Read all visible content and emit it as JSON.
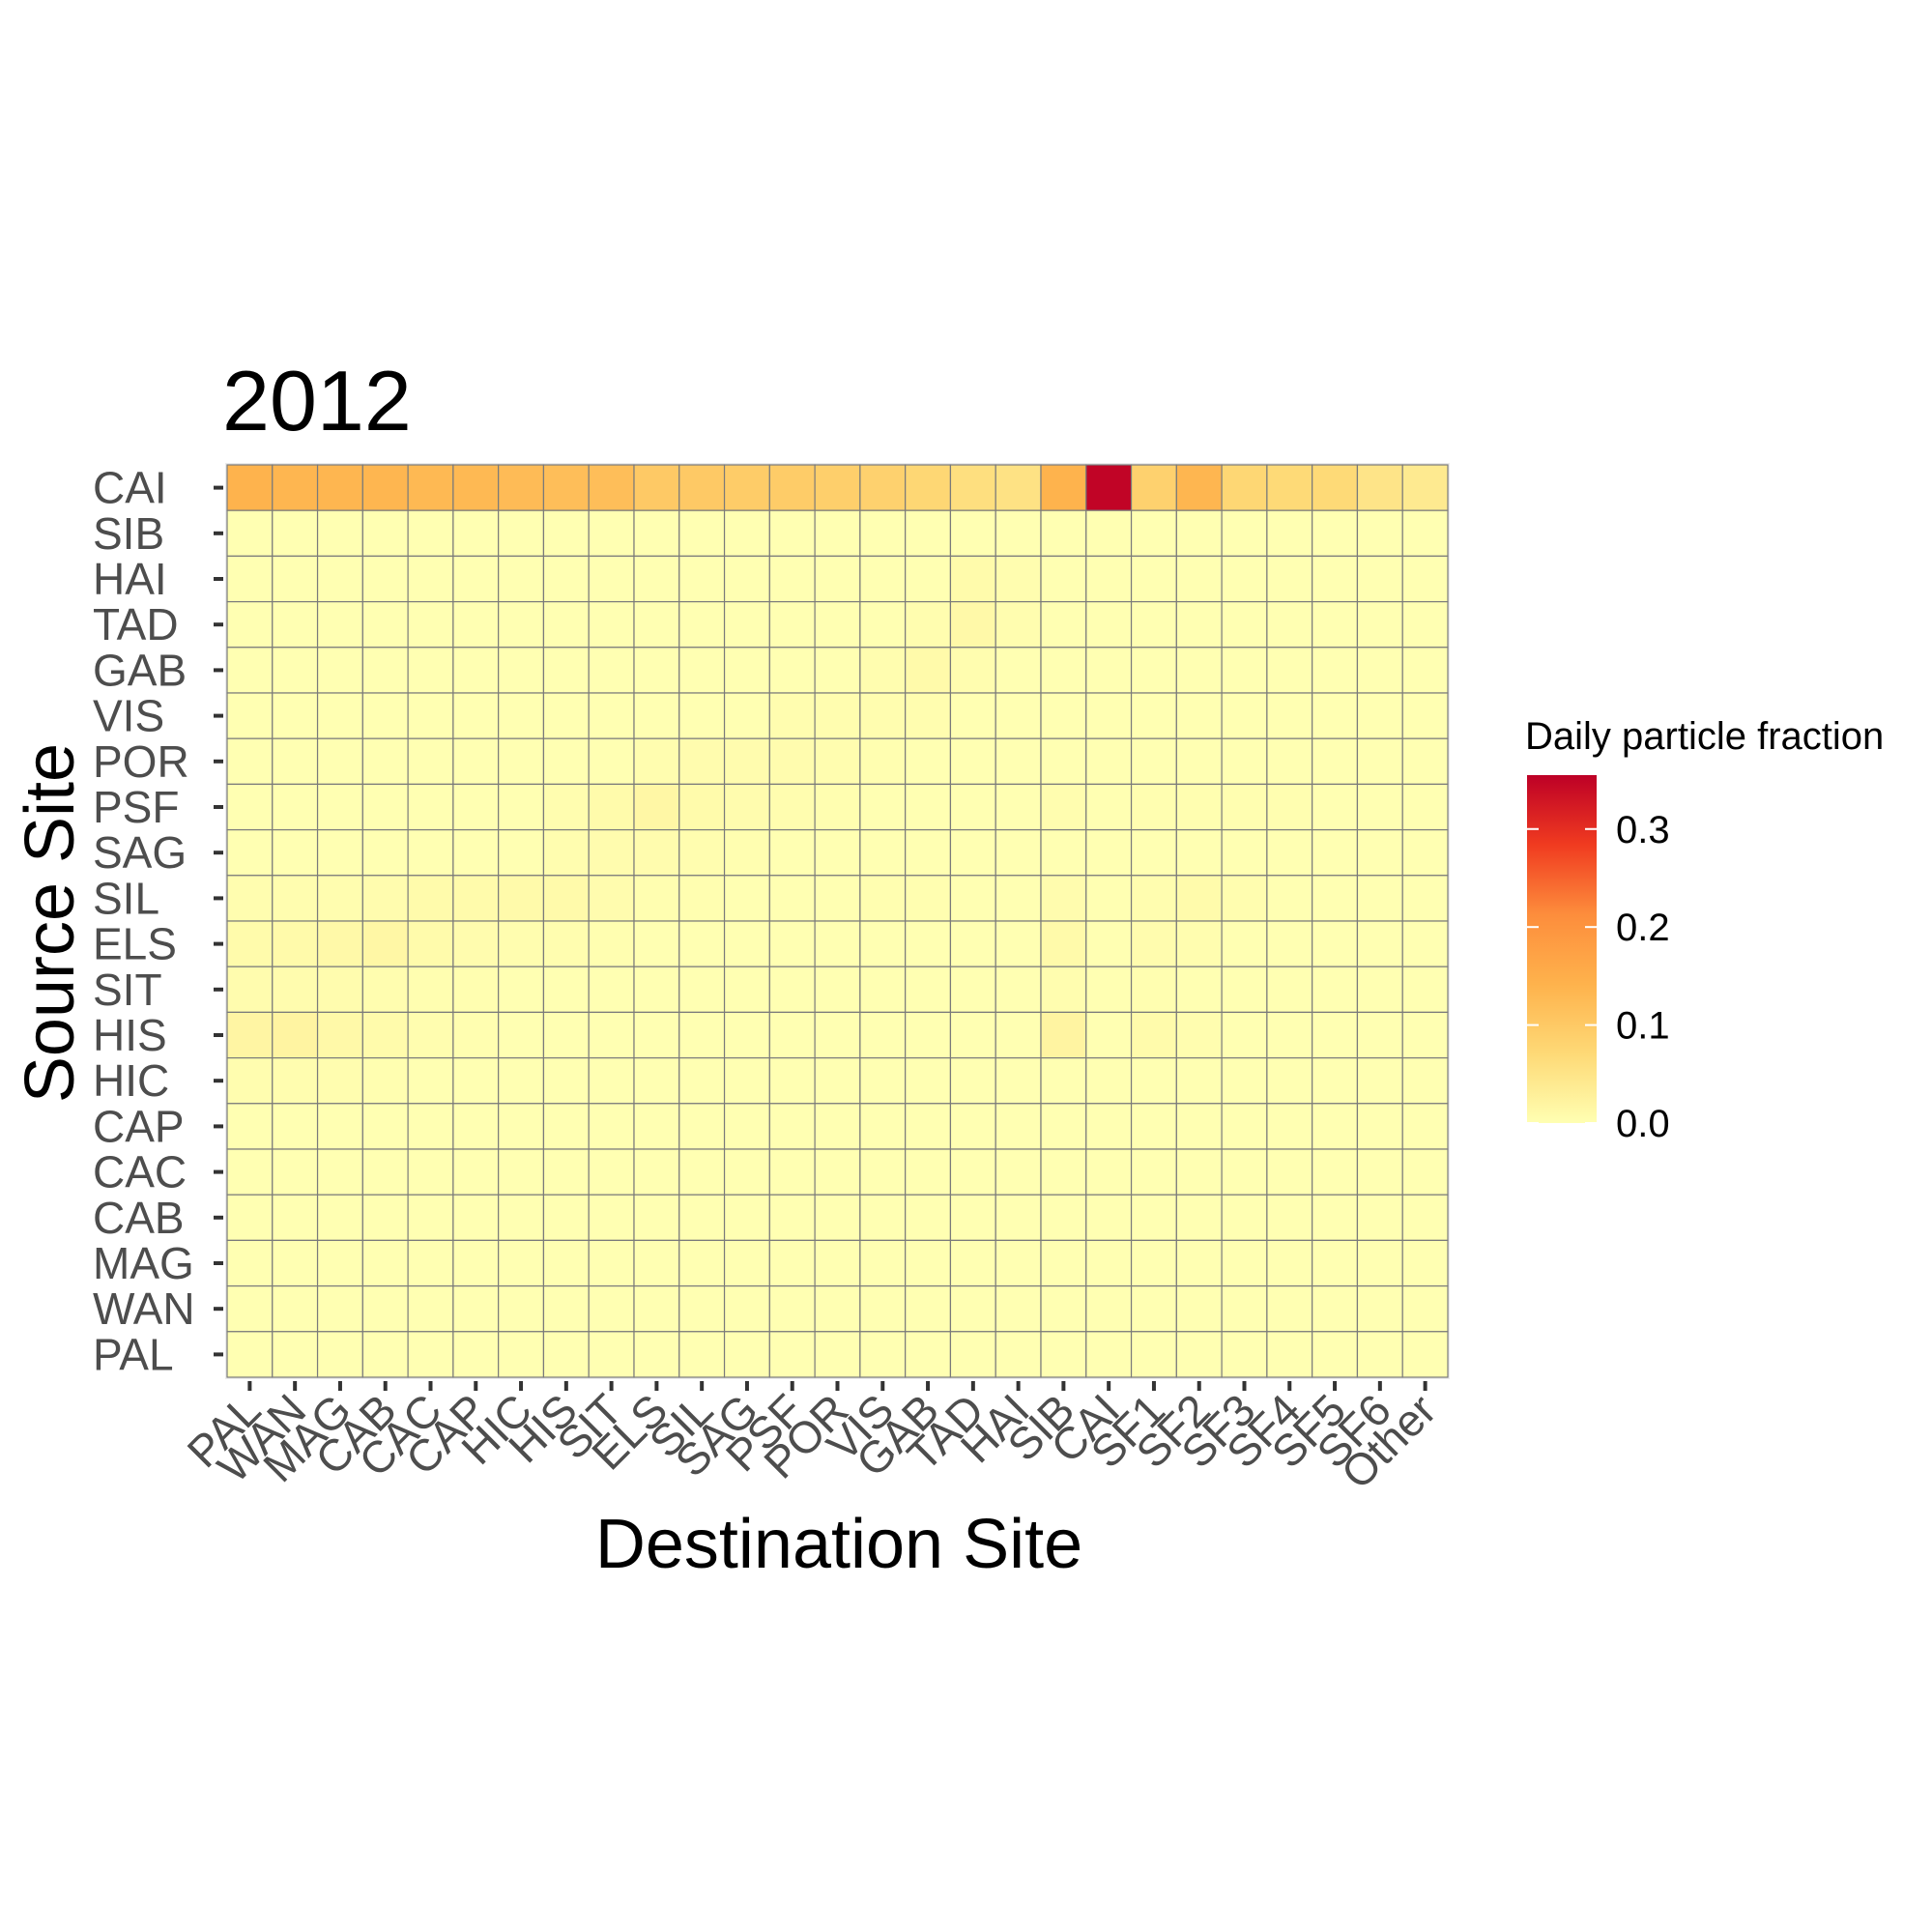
{
  "chart_data": {
    "type": "heatmap",
    "title": "2012",
    "xlabel": "Destination Site",
    "ylabel": "Source Site",
    "x_categories": [
      "PAL",
      "WAN",
      "MAG",
      "CAB",
      "CAC",
      "CAP",
      "HIC",
      "HIS",
      "SIT",
      "ELS",
      "SIL",
      "SAG",
      "PSF",
      "POR",
      "VIS",
      "GAB",
      "TAD",
      "HAI",
      "SIB",
      "CAI",
      "SF1",
      "SF2",
      "SF3",
      "SF4",
      "SF5",
      "SF6",
      "Other"
    ],
    "y_categories": [
      "PAL",
      "WAN",
      "MAG",
      "CAB",
      "CAC",
      "CAP",
      "HIC",
      "HIS",
      "SIT",
      "ELS",
      "SIL",
      "SAG",
      "PSF",
      "POR",
      "VIS",
      "GAB",
      "TAD",
      "HAI",
      "SIB",
      "CAI"
    ],
    "cells": [
      {
        "y": "CAI",
        "values": [
          0.14,
          0.135,
          0.135,
          0.135,
          0.13,
          0.13,
          0.125,
          0.12,
          0.12,
          0.1,
          0.1,
          0.095,
          0.095,
          0.09,
          0.085,
          0.075,
          0.06,
          0.055,
          0.14,
          0.35,
          0.085,
          0.135,
          0.075,
          0.07,
          0.07,
          0.05,
          0.04
        ]
      },
      {
        "y": "SIB",
        "values": [
          0,
          0,
          0,
          0,
          0,
          0,
          0,
          0,
          0,
          0,
          0,
          0,
          0,
          0,
          0,
          0,
          0,
          0,
          0,
          0,
          0,
          0,
          0,
          0,
          0,
          0,
          0
        ]
      },
      {
        "y": "HAI",
        "values": [
          0,
          0,
          0,
          0,
          0,
          0,
          0,
          0,
          0,
          0,
          0,
          0,
          0,
          0,
          0,
          0,
          0.008,
          0.003,
          0,
          0,
          0,
          0,
          0,
          0,
          0,
          0,
          0
        ]
      },
      {
        "y": "TAD",
        "values": [
          0,
          0,
          0,
          0,
          0,
          0,
          0,
          0,
          0,
          0,
          0,
          0,
          0,
          0,
          0,
          0.003,
          0.012,
          0.003,
          0,
          0,
          0,
          0,
          0,
          0,
          0,
          0,
          0
        ]
      },
      {
        "y": "GAB",
        "values": [
          0,
          0,
          0,
          0,
          0,
          0,
          0,
          0,
          0,
          0,
          0,
          0,
          0,
          0,
          0.003,
          0.01,
          0.003,
          0,
          0,
          0,
          0,
          0,
          0,
          0,
          0,
          0,
          0
        ]
      },
      {
        "y": "VIS",
        "values": [
          0,
          0,
          0,
          0,
          0,
          0,
          0,
          0,
          0,
          0,
          0,
          0,
          0.003,
          0.003,
          0.003,
          0.003,
          0,
          0,
          0,
          0,
          0,
          0,
          0,
          0,
          0,
          0,
          0
        ]
      },
      {
        "y": "POR",
        "values": [
          0,
          0,
          0,
          0,
          0,
          0,
          0,
          0,
          0,
          0.003,
          0.005,
          0.005,
          0.005,
          0.003,
          0.002,
          0,
          0,
          0,
          0,
          0,
          0,
          0,
          0,
          0,
          0,
          0,
          0
        ]
      },
      {
        "y": "PSF",
        "values": [
          0,
          0,
          0,
          0,
          0,
          0,
          0,
          0.003,
          0.008,
          0.015,
          0.008,
          0.005,
          0.003,
          0.002,
          0,
          0,
          0,
          0,
          0.003,
          0,
          0.002,
          0.002,
          0.002,
          0.002,
          0,
          0,
          0
        ]
      },
      {
        "y": "SAG",
        "values": [
          0,
          0,
          0,
          0,
          0,
          0,
          0,
          0.003,
          0.005,
          0.005,
          0.003,
          0.002,
          0,
          0,
          0,
          0,
          0,
          0,
          0,
          0,
          0,
          0,
          0,
          0,
          0,
          0,
          0
        ]
      },
      {
        "y": "SIL",
        "values": [
          0.003,
          0.003,
          0.003,
          0.005,
          0.008,
          0.008,
          0.01,
          0.01,
          0.005,
          0.002,
          0.002,
          0,
          0,
          0,
          0.002,
          0.002,
          0,
          0,
          0.005,
          0,
          0.003,
          0.008,
          0.003,
          0,
          0,
          0,
          0
        ]
      },
      {
        "y": "ELS",
        "values": [
          0.008,
          0.01,
          0.012,
          0.015,
          0.008,
          0.005,
          0.003,
          0.003,
          0.002,
          0,
          0,
          0,
          0,
          0,
          0,
          0,
          0,
          0,
          0.01,
          0,
          0.005,
          0.003,
          0,
          0,
          0,
          0,
          0
        ]
      },
      {
        "y": "SIT",
        "values": [
          0.005,
          0.005,
          0.005,
          0.003,
          0.002,
          0.002,
          0,
          0,
          0,
          0,
          0,
          0,
          0,
          0,
          0,
          0,
          0,
          0,
          0.003,
          0,
          0.002,
          0,
          0,
          0,
          0,
          0,
          0
        ]
      },
      {
        "y": "HIS",
        "values": [
          0.018,
          0.02,
          0.012,
          0.008,
          0.003,
          0.002,
          0,
          0,
          0,
          0,
          0,
          0,
          0,
          0,
          0,
          0,
          0,
          0,
          0.02,
          0,
          0.008,
          0.003,
          0,
          0,
          0,
          0,
          0
        ]
      },
      {
        "y": "HIC",
        "values": [
          0.003,
          0.003,
          0.003,
          0.002,
          0,
          0,
          0,
          0,
          0,
          0,
          0,
          0,
          0,
          0,
          0,
          0,
          0,
          0,
          0,
          0,
          0,
          0,
          0,
          0,
          0,
          0,
          0
        ]
      },
      {
        "y": "CAP",
        "values": [
          0,
          0,
          0,
          0,
          0,
          0,
          0,
          0,
          0,
          0,
          0,
          0,
          0,
          0,
          0,
          0,
          0,
          0,
          0,
          0,
          0,
          0,
          0,
          0,
          0,
          0,
          0
        ]
      },
      {
        "y": "CAC",
        "values": [
          0,
          0,
          0,
          0,
          0,
          0,
          0,
          0,
          0,
          0,
          0,
          0,
          0,
          0,
          0,
          0,
          0,
          0,
          0,
          0,
          0,
          0,
          0,
          0,
          0,
          0,
          0
        ]
      },
      {
        "y": "CAB",
        "values": [
          0,
          0,
          0,
          0,
          0,
          0,
          0,
          0,
          0,
          0,
          0,
          0,
          0,
          0,
          0,
          0,
          0,
          0,
          0,
          0,
          0,
          0,
          0,
          0,
          0,
          0,
          0
        ]
      },
      {
        "y": "MAG",
        "values": [
          0,
          0,
          0,
          0,
          0,
          0,
          0,
          0,
          0,
          0,
          0,
          0,
          0,
          0,
          0,
          0,
          0,
          0,
          0,
          0,
          0,
          0,
          0,
          0,
          0,
          0,
          0
        ]
      },
      {
        "y": "WAN",
        "values": [
          0,
          0,
          0,
          0,
          0,
          0,
          0,
          0,
          0,
          0,
          0,
          0,
          0,
          0,
          0,
          0,
          0,
          0,
          0,
          0,
          0,
          0,
          0,
          0,
          0,
          0,
          0
        ]
      },
      {
        "y": "PAL",
        "values": [
          0,
          0,
          0,
          0,
          0,
          0,
          0,
          0,
          0,
          0,
          0,
          0,
          0,
          0,
          0,
          0,
          0,
          0,
          0,
          0,
          0,
          0,
          0,
          0,
          0,
          0,
          0
        ]
      }
    ],
    "value_range": [
      0,
      0.355
    ],
    "legend": {
      "title": "Daily particle fraction",
      "ticks": [
        0.0,
        0.1,
        0.2,
        0.3
      ],
      "tick_labels": [
        "0.0",
        "0.1",
        "0.2",
        "0.3"
      ],
      "placement": "right"
    },
    "colors": [
      "#ffffb2",
      "#fed976",
      "#feb24c",
      "#fd8d3c",
      "#f03b20",
      "#bd0026"
    ],
    "grid": true
  }
}
